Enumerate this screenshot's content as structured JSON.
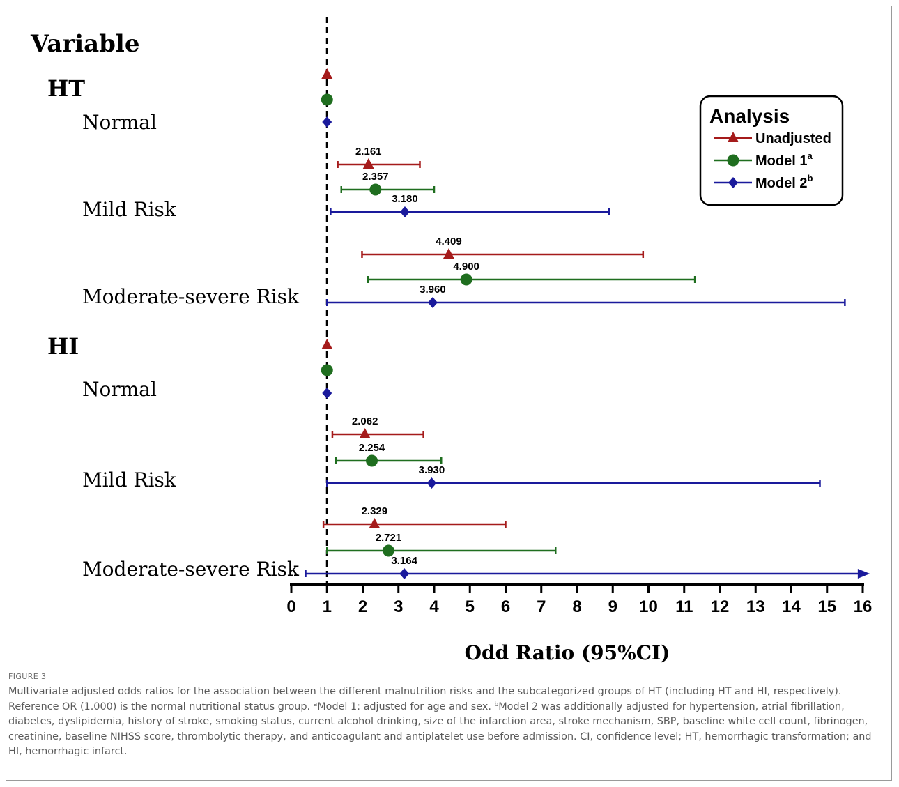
{
  "chart_data": {
    "type": "forest",
    "title": "",
    "xlabel": "Odd Ratio (95%CI)",
    "ylabel": "Variable",
    "xlim": [
      0,
      16
    ],
    "xticks": [
      0,
      1,
      2,
      3,
      4,
      5,
      6,
      7,
      8,
      9,
      10,
      11,
      12,
      13,
      14,
      15,
      16
    ],
    "reference_line": 1,
    "legend": {
      "title": "Analysis",
      "placement": "top-right",
      "entries": [
        {
          "name": "Unadjusted",
          "sup": "",
          "color": "#a51b1b",
          "marker": "triangle"
        },
        {
          "name": "Model 1",
          "sup": "a",
          "color": "#1f6e1f",
          "marker": "circle"
        },
        {
          "name": "Model 2",
          "sup": "b",
          "color": "#1a1a9c",
          "marker": "diamond"
        }
      ]
    },
    "groups": [
      {
        "label": "HT",
        "rows": [
          {
            "label": "Normal",
            "estimates": [
              {
                "series": "Unadjusted",
                "or": 1.0,
                "lo": null,
                "hi": null,
                "text": ""
              },
              {
                "series": "Model 1",
                "or": 1.0,
                "lo": null,
                "hi": null,
                "text": ""
              },
              {
                "series": "Model 2",
                "or": 1.0,
                "lo": null,
                "hi": null,
                "text": ""
              }
            ]
          },
          {
            "label": "Mild Risk",
            "estimates": [
              {
                "series": "Unadjusted",
                "or": 2.161,
                "lo": 1.3,
                "hi": 3.6,
                "text": "2.161"
              },
              {
                "series": "Model 1",
                "or": 2.357,
                "lo": 1.4,
                "hi": 4.0,
                "text": "2.357"
              },
              {
                "series": "Model 2",
                "or": 3.18,
                "lo": 1.1,
                "hi": 8.9,
                "text": "3.180"
              }
            ]
          },
          {
            "label": "Moderate-severe Risk",
            "estimates": [
              {
                "series": "Unadjusted",
                "or": 4.409,
                "lo": 1.98,
                "hi": 9.85,
                "text": "4.409"
              },
              {
                "series": "Model 1",
                "or": 4.9,
                "lo": 2.15,
                "hi": 11.3,
                "text": "4.900"
              },
              {
                "series": "Model 2",
                "or": 3.96,
                "lo": 1.0,
                "hi": 15.5,
                "text": "3.960"
              }
            ]
          }
        ]
      },
      {
        "label": "HI",
        "rows": [
          {
            "label": "Normal",
            "estimates": [
              {
                "series": "Unadjusted",
                "or": 1.0,
                "lo": null,
                "hi": null,
                "text": ""
              },
              {
                "series": "Model 1",
                "or": 1.0,
                "lo": null,
                "hi": null,
                "text": ""
              },
              {
                "series": "Model 2",
                "or": 1.0,
                "lo": null,
                "hi": null,
                "text": ""
              }
            ]
          },
          {
            "label": "Mild Risk",
            "estimates": [
              {
                "series": "Unadjusted",
                "or": 2.062,
                "lo": 1.15,
                "hi": 3.7,
                "text": "2.062"
              },
              {
                "series": "Model 1",
                "or": 2.254,
                "lo": 1.25,
                "hi": 4.2,
                "text": "2.254"
              },
              {
                "series": "Model 2",
                "or": 3.93,
                "lo": 1.0,
                "hi": 14.8,
                "text": "3.930"
              }
            ]
          },
          {
            "label": "Moderate-severe Risk",
            "estimates": [
              {
                "series": "Unadjusted",
                "or": 2.329,
                "lo": 0.9,
                "hi": 6.0,
                "text": "2.329"
              },
              {
                "series": "Model 1",
                "or": 2.721,
                "lo": 1.0,
                "hi": 7.4,
                "text": "2.721"
              },
              {
                "series": "Model 2",
                "or": 3.164,
                "lo": 0.4,
                "hi": 16.2,
                "text": "3.164",
                "arrow": true
              }
            ]
          }
        ]
      }
    ]
  },
  "figure": {
    "label": "FIGURE 3",
    "caption_1": "Multivariate adjusted odds ratios for the association between the different malnutrition risks and the subcategorized groups of HT (including HT and HI, respectively). Reference OR (1.000) is the normal nutritional status group. ",
    "caption_sup_a": "a",
    "caption_2": "Model 1: adjusted for age and sex. ",
    "caption_sup_b": "b",
    "caption_3": "Model 2 was additionally adjusted for hypertension, atrial fibrillation, diabetes, dyslipidemia, history of stroke, smoking status, current alcohol drinking, size of the infarction area, stroke mechanism, SBP, baseline white cell count, fibrinogen, creatinine, baseline NIHSS score, thrombolytic therapy, and anticoagulant and antiplatelet use before admission. CI, confidence level; HT, hemorrhagic transformation; and HI, hemorrhagic infarct."
  }
}
